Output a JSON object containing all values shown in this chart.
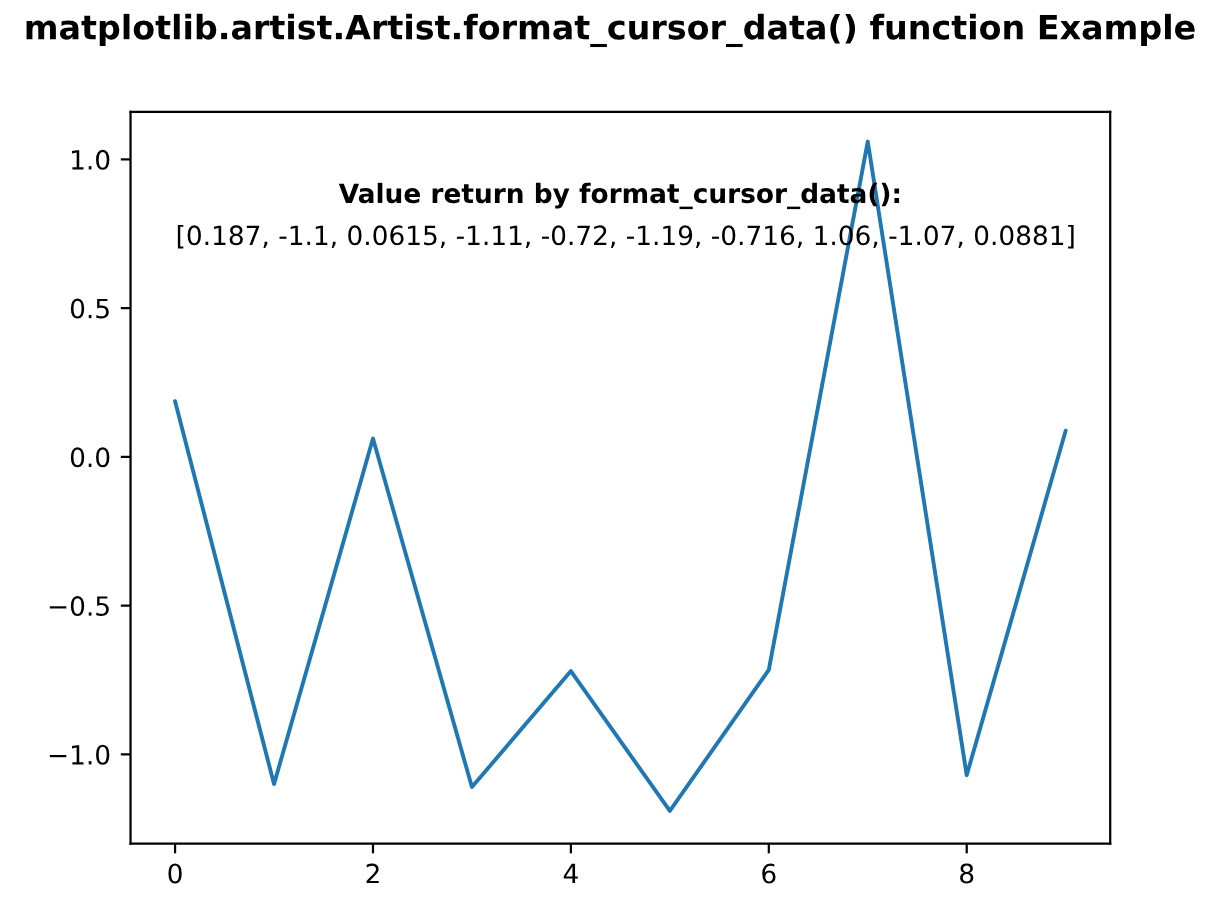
{
  "chart_data": {
    "type": "line",
    "title": "matplotlib.artist.Artist.format_cursor_data() function Example",
    "x": [
      0,
      1,
      2,
      3,
      4,
      5,
      6,
      7,
      8,
      9
    ],
    "series": [
      {
        "color": "#1f77b4",
        "values": [
          0.187,
          -1.1,
          0.0615,
          -1.11,
          -0.72,
          -1.19,
          -0.716,
          1.06,
          -1.07,
          0.0881
        ]
      }
    ],
    "xlim": [
      -0.45,
      9.45
    ],
    "ylim": [
      -1.3,
      1.16
    ],
    "xticks": [
      0,
      2,
      4,
      6,
      8
    ],
    "yticks": [
      {
        "value": -1,
        "label": "−1.0"
      },
      {
        "value": -0.5,
        "label": "−0.5"
      },
      {
        "value": 0,
        "label": "0.0"
      },
      {
        "value": 0.5,
        "label": "0.5"
      },
      {
        "value": 1,
        "label": "1.0"
      }
    ],
    "annotations": [
      "Value return by format_cursor_data():",
      "[0.187, -1.1, 0.0615, -1.11, -0.72, -1.19, -0.716, 1.06, -1.07, 0.0881]"
    ],
    "line_style": "solid"
  }
}
